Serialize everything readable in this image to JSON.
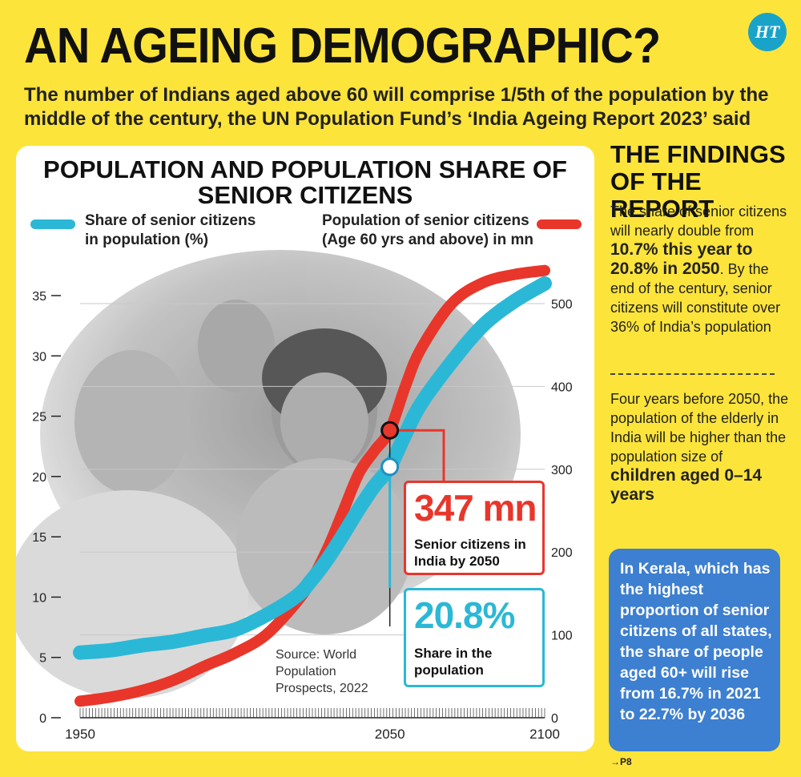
{
  "header": {
    "title": "AN AGEING DEMOGRAPHIC?",
    "logo_text": "HT",
    "subtitle": "The number of Indians aged above 60 will comprise 1/5th of the population by the middle of the century, the UN Population Fund’s ‘India Ageing Report 2023’ said"
  },
  "chart_title_lines": [
    "POPULATION AND POPULATION SHARE OF",
    "SENIOR CITIZENS"
  ],
  "legend": {
    "share_line1": "Share of senior citizens",
    "share_line2": "in population (%)",
    "pop_line1": "Population of senior citizens",
    "pop_line2": "(Age 60 yrs and above) in mn"
  },
  "callouts": {
    "pop_value": "347 mn",
    "pop_label1": "Senior citizens in",
    "pop_label2": "India by 2050",
    "share_value": "20.8%",
    "share_label1": "Share in the",
    "share_label2": "population"
  },
  "source_lines": [
    "Source: World",
    "Population",
    "Prospects, 2022"
  ],
  "sidebar": {
    "title_line1": "THE FINDINGS",
    "title_line2": "OF THE REPORT",
    "para1_pre": "The share of senior citizens will nearly double from ",
    "para1_bold": "10.7% this year to 20.8% in 2050",
    "para1_post": ". By the end of the century, senior citizens will constitute over 36% of India’s population",
    "para2_pre": "Four years before 2050, the population of the elderly in India will be higher than the population size of ",
    "para2_bold": "children aged 0–14 years",
    "kerala": "In Kerala, which has the highest proportion of senior citizens of all states, the share of people aged 60+ will rise from 16.7% in 2021 to 22.7% by 2036",
    "page_ref": "→P8"
  },
  "colors": {
    "background": "#fde43a",
    "share_series": "#2bb8d6",
    "population_series": "#e8362b",
    "kerala_box": "#3d7fd0",
    "share_callout_border": "#2bb8d6",
    "pop_callout_border": "#e8362b"
  },
  "chart_data": {
    "type": "line",
    "title": "POPULATION AND POPULATION SHARE OF SENIOR CITIZENS",
    "x_ticks": [
      "1950",
      "2050",
      "2100"
    ],
    "xlim": [
      1950,
      2100
    ],
    "left_axis": {
      "ylim": [
        0,
        35
      ],
      "ticks": [
        "0",
        "5",
        "10",
        "15",
        "20",
        "25",
        "30",
        "35"
      ]
    },
    "right_axis": {
      "ylim": [
        0,
        500
      ],
      "ticks": [
        "0",
        "100",
        "200",
        "300",
        "400",
        "500"
      ]
    },
    "grid": "horizontal",
    "series": [
      {
        "name": "Share of senior citizens in population (%)",
        "axis": "left",
        "x": [
          1950,
          1960,
          1970,
          1980,
          1990,
          2000,
          2010,
          2020,
          2025,
          2030,
          2035,
          2040,
          2045,
          2050,
          2055,
          2060,
          2070,
          2080,
          2090,
          2100
        ],
        "values": [
          5.4,
          5.6,
          6.0,
          6.3,
          6.8,
          7.3,
          8.5,
          10.1,
          11.5,
          13.2,
          15.2,
          17.3,
          19.2,
          20.8,
          23.5,
          26.0,
          29.5,
          32.5,
          34.5,
          36.0
        ]
      },
      {
        "name": "Population of senior citizens (Age 60 yrs and above) in mn",
        "axis": "right",
        "x": [
          1950,
          1960,
          1970,
          1980,
          1990,
          2000,
          2010,
          2020,
          2025,
          2030,
          2035,
          2040,
          2045,
          2050,
          2055,
          2060,
          2070,
          2080,
          2090,
          2100
        ],
        "values": [
          20,
          25,
          33,
          45,
          62,
          78,
          100,
          140,
          168,
          205,
          250,
          295,
          322,
          347,
          400,
          445,
          500,
          525,
          535,
          540
        ]
      }
    ],
    "annotations": [
      {
        "x": 2050,
        "series": "population",
        "value": 347,
        "text": "347 mn Senior citizens in India by 2050"
      },
      {
        "x": 2050,
        "series": "share",
        "value": 20.8,
        "text": "20.8% Share in the population"
      }
    ]
  }
}
